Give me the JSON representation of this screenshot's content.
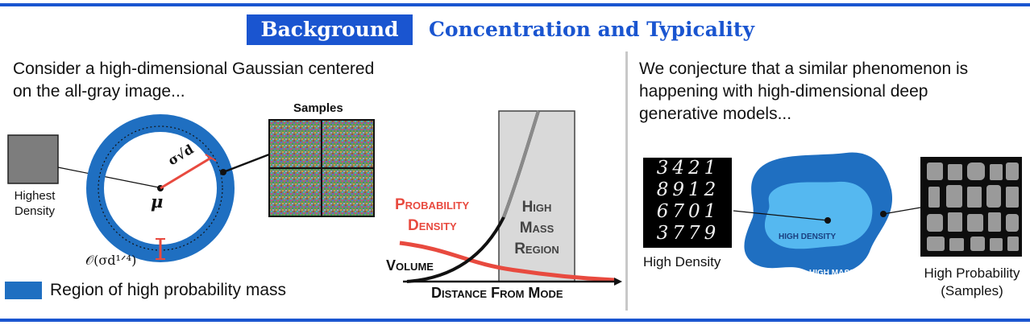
{
  "header": {
    "badge": "Background",
    "title": "Concentration and Typicality"
  },
  "left_panel": {
    "intro_line1": "Consider a high-dimensional Gaussian centered",
    "intro_line2": "on the all-gray image...",
    "highest_density_line1": "Highest",
    "highest_density_line2": "Density",
    "mu_symbol": "μ",
    "radius_label": "σ√d",
    "shell_width_label": "𝒪(σd¹ᐟ⁴)",
    "samples_label": "Samples",
    "legend_label": "Region of high probability mass",
    "colors": {
      "mass": "#1f6fc1",
      "accent_red": "#e84a3f",
      "title_blue": "#1a55d0"
    }
  },
  "density_plot": {
    "probability_density_line1": "Probability",
    "probability_density_line2": "Density",
    "high_mass_line1": "High",
    "high_mass_line2": "Mass",
    "high_mass_line3": "Region",
    "volume_label": "Volume",
    "xaxis_label": "Distance From Mode"
  },
  "right_panel": {
    "intro_line1": "We conjecture that a similar phenomenon is",
    "intro_line2": "happening with high-dimensional deep",
    "intro_line3": "generative models...",
    "digits_row1": "3421",
    "digits_row2": "8912",
    "digits_row3": "6701",
    "digits_row4": "3779",
    "high_density_caption": "High Density",
    "blob_inner_label": "HIGH DENSITY",
    "blob_outer_label": "HIGH MASS",
    "high_probability_line1": "High Probability",
    "high_probability_line2": "(Samples)",
    "colors": {
      "outer": "#1f6fc1",
      "inner": "#55b8f0"
    }
  }
}
